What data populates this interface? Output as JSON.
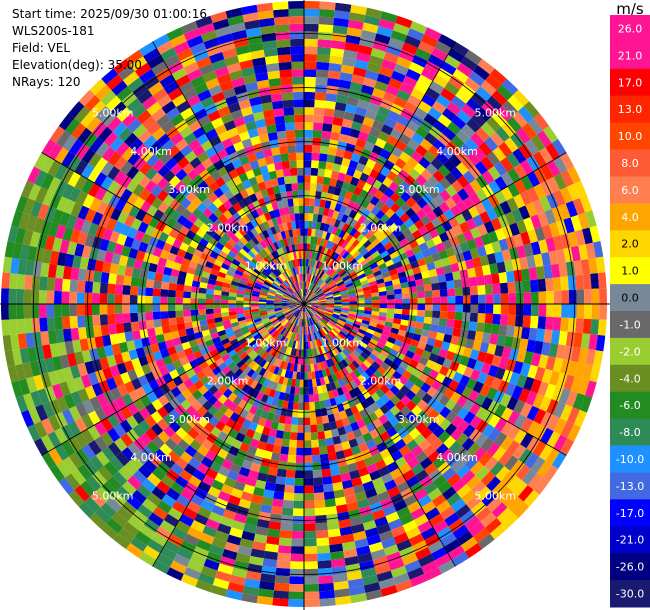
{
  "header": {
    "start_time": "Start time: 2025/09/30 01:00:16",
    "instrument": "WLS200s-181",
    "field": "Field: VEL",
    "elevation": "Elevation(deg): 35.00",
    "nrays": "NRays: 120"
  },
  "chart_data": {
    "type": "heatmap",
    "projection": "polar-ppi",
    "field": "VEL",
    "rays": 120,
    "range_gates": 40,
    "range_max_km": 5.6,
    "range_rings_km": [
      1,
      2,
      3,
      4,
      5
    ],
    "range_ring_labels": [
      "1.00km",
      "2.00km",
      "3.00km",
      "4.00km",
      "5.00km"
    ],
    "grid": true,
    "colorbar": {
      "unit": "m/s",
      "ticks": [
        "26.0",
        "21.0",
        "17.0",
        "13.0",
        "10.0",
        "8.0",
        "6.0",
        "4.0",
        "2.0",
        "1.0",
        "0.0",
        "-1.0",
        "-2.0",
        "-4.0",
        "-6.0",
        "-8.0",
        "-10.0",
        "-13.0",
        "-17.0",
        "-21.0",
        "-26.0",
        "-30.0"
      ],
      "colors": [
        "#ff1493",
        "#ff1493",
        "#ff0000",
        "#ff2500",
        "#ff4500",
        "#ff5a36",
        "#ff7f50",
        "#ffa500",
        "#ffd700",
        "#ffff00",
        "#778899",
        "#696969",
        "#9acd32",
        "#6b8e23",
        "#228b22",
        "#2e8b57",
        "#1e90ff",
        "#4169e1",
        "#0000ff",
        "#0000cd",
        "#000080",
        "#191970"
      ]
    }
  }
}
